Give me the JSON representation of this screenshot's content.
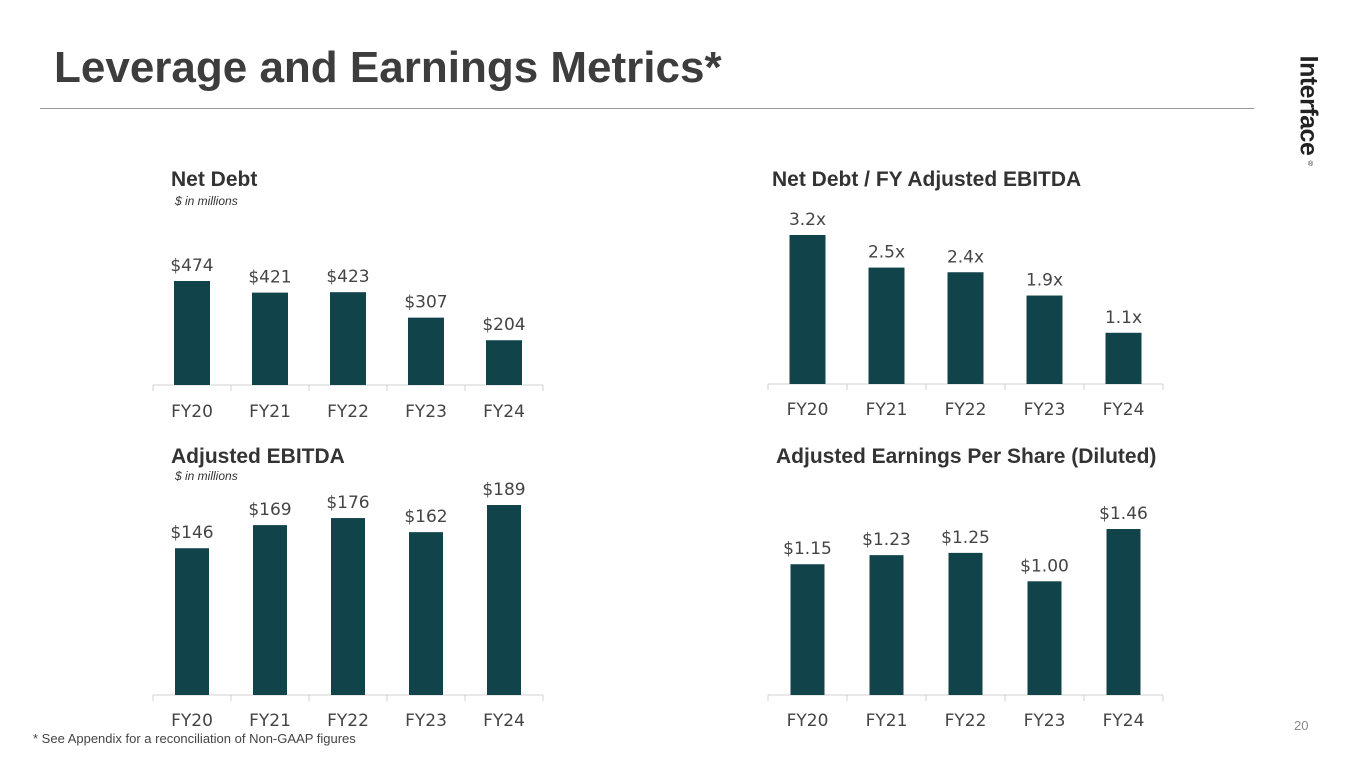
{
  "page": {
    "title": "Leverage and Earnings Metrics*",
    "logo_text": "Interface",
    "logo_mark": "®",
    "footnote": "* See Appendix for a reconciliation of Non-GAAP figures",
    "page_number": "20"
  },
  "colors": {
    "bar": "#10444a",
    "axis": "#d0d0d0",
    "title_text": "#3d3d3d"
  },
  "chart_data": [
    {
      "type": "bar",
      "title": "Net Debt",
      "subtitle": "$ in millions",
      "categories": [
        "FY20",
        "FY21",
        "FY22",
        "FY23",
        "FY24"
      ],
      "values": [
        474,
        421,
        423,
        307,
        204
      ],
      "labels": [
        "$474",
        "$421",
        "$423",
        "$307",
        "$204"
      ],
      "ylim": [
        0,
        474
      ],
      "grid": false,
      "legend": "none"
    },
    {
      "type": "bar",
      "title": "Net Debt / FY Adjusted EBITDA",
      "subtitle": "",
      "categories": [
        "FY20",
        "FY21",
        "FY22",
        "FY23",
        "FY24"
      ],
      "values": [
        3.2,
        2.5,
        2.4,
        1.9,
        1.1
      ],
      "labels": [
        "3.2x",
        "2.5x",
        "2.4x",
        "1.9x",
        "1.1x"
      ],
      "ylim": [
        0,
        3.2
      ],
      "grid": false,
      "legend": "none"
    },
    {
      "type": "bar",
      "title": "Adjusted EBITDA",
      "subtitle": "$ in millions",
      "categories": [
        "FY20",
        "FY21",
        "FY22",
        "FY23",
        "FY24"
      ],
      "values": [
        146,
        169,
        176,
        162,
        189
      ],
      "labels": [
        "$146",
        "$169",
        "$176",
        "$162",
        "$189"
      ],
      "ylim": [
        0,
        189
      ],
      "grid": false,
      "legend": "none"
    },
    {
      "type": "bar",
      "title": "Adjusted Earnings Per Share (Diluted)",
      "subtitle": "",
      "categories": [
        "FY20",
        "FY21",
        "FY22",
        "FY23",
        "FY24"
      ],
      "values": [
        1.15,
        1.23,
        1.25,
        1.0,
        1.46
      ],
      "labels": [
        "$1.15",
        "$1.23",
        "$1.25",
        "$1.00",
        "$1.46"
      ],
      "ylim": [
        0,
        1.46
      ],
      "grid": false,
      "legend": "none"
    }
  ]
}
